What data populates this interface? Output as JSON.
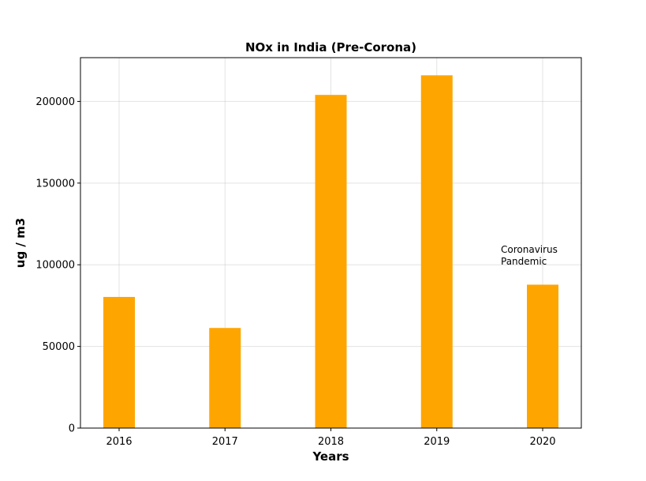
{
  "chart_data": {
    "type": "bar",
    "title": "NOx in India (Pre-Corona)",
    "xlabel": "Years",
    "ylabel": "ug / m3",
    "categories": [
      "2016",
      "2017",
      "2018",
      "2019",
      "2020"
    ],
    "values": [
      80300,
      61300,
      204000,
      216000,
      87800
    ],
    "ylim": [
      0,
      226800
    ],
    "yticks": [
      0,
      50000,
      100000,
      150000,
      200000
    ],
    "ytick_labels": [
      "0",
      "50000",
      "100000",
      "150000",
      "200000"
    ],
    "bar_color": "#ffa500",
    "grid": true,
    "annotation": {
      "lines": [
        "Coronavirus",
        "Pandemic"
      ],
      "x_category": "2020",
      "y": 100000
    }
  }
}
